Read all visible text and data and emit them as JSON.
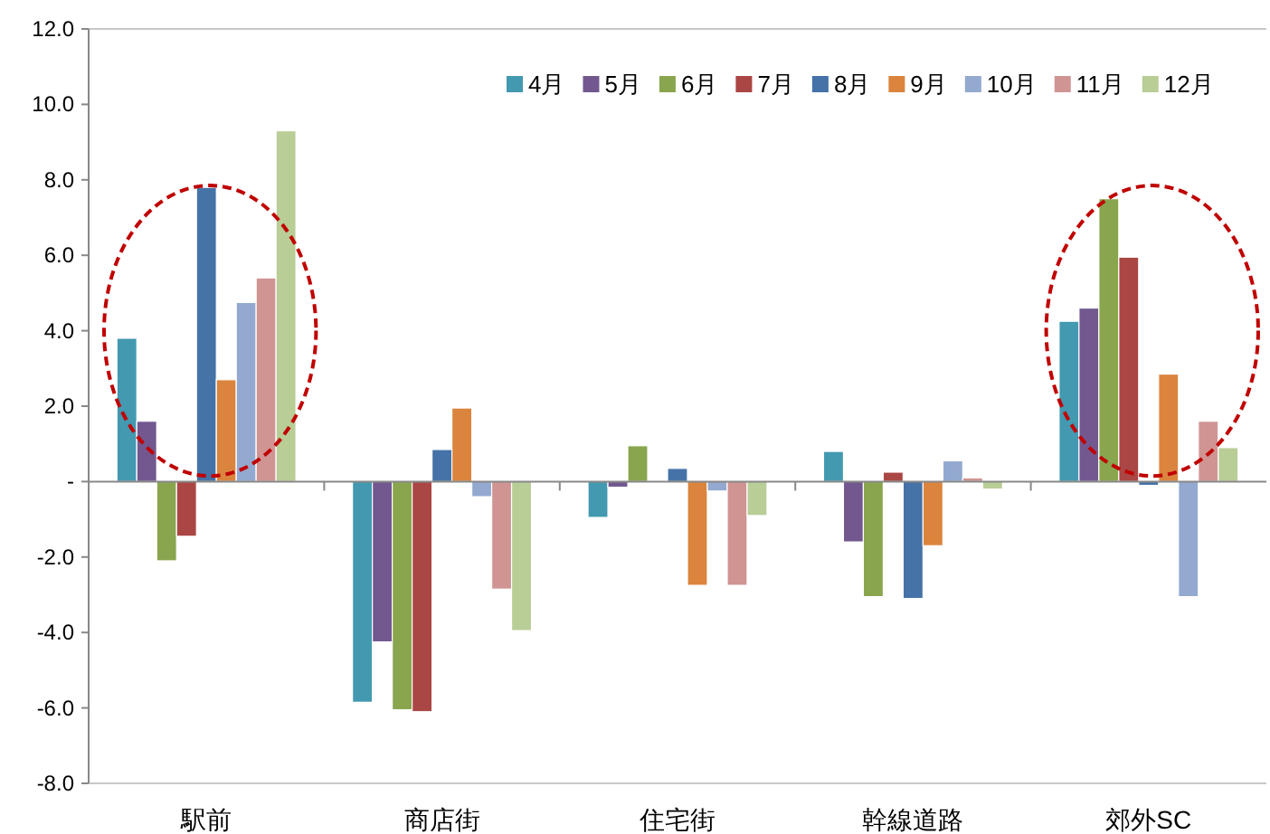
{
  "chart_data": {
    "type": "bar",
    "categories": [
      "駅前",
      "商店街",
      "住宅街",
      "幹線道路",
      "郊外SC"
    ],
    "ylim": [
      -8,
      12
    ],
    "yticks": [
      {
        "value": -8,
        "label": "-8.0"
      },
      {
        "value": -6,
        "label": "-6.0"
      },
      {
        "value": -4,
        "label": "-4.0"
      },
      {
        "value": -2,
        "label": "-2.0"
      },
      {
        "value": 0,
        "label": "-"
      },
      {
        "value": 2,
        "label": "2.0"
      },
      {
        "value": 4,
        "label": "4.0"
      },
      {
        "value": 6,
        "label": "6.0"
      },
      {
        "value": 8,
        "label": "8.0"
      },
      {
        "value": 10,
        "label": "10.0"
      },
      {
        "value": 12,
        "label": "12.0"
      }
    ],
    "legend": "top right",
    "series": [
      {
        "name": "4月",
        "color": "#4299b0",
        "values": [
          3.8,
          -5.85,
          -0.95,
          0.8,
          4.25
        ]
      },
      {
        "name": "5月",
        "color": "#72588f",
        "values": [
          1.6,
          -4.25,
          -0.15,
          -1.6,
          4.6
        ]
      },
      {
        "name": "6月",
        "color": "#89a54e",
        "values": [
          -2.1,
          -6.05,
          0.95,
          -3.05,
          7.5
        ]
      },
      {
        "name": "7月",
        "color": "#aa4644",
        "values": [
          -1.45,
          -6.1,
          0,
          0.25,
          5.95
        ]
      },
      {
        "name": "8月",
        "color": "#4572a7",
        "values": [
          7.8,
          0.85,
          0.35,
          -3.1,
          -0.1
        ]
      },
      {
        "name": "9月",
        "color": "#db843d",
        "values": [
          2.7,
          1.95,
          -2.75,
          -1.7,
          2.85
        ]
      },
      {
        "name": "10月",
        "color": "#93a9cf",
        "values": [
          4.75,
          -0.4,
          -0.25,
          0.55,
          -3.05
        ]
      },
      {
        "name": "11月",
        "color": "#d09493",
        "values": [
          5.4,
          -2.85,
          -2.75,
          0.1,
          1.6
        ]
      },
      {
        "name": "12月",
        "color": "#b9cd96",
        "values": [
          9.3,
          -3.95,
          -0.9,
          -0.2,
          0.9
        ]
      }
    ]
  }
}
